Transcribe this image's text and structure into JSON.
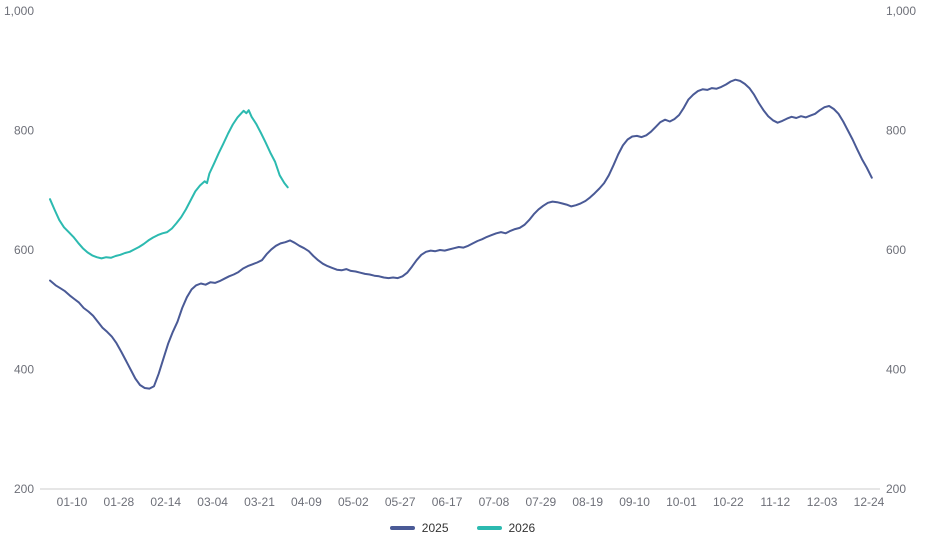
{
  "chart_data": {
    "type": "line",
    "title": "",
    "xlabel": "",
    "ylabel": "",
    "ylim": [
      200,
      1000
    ],
    "grid": false,
    "legend_position": "bottom",
    "y_axis": {
      "tick_values": [
        200,
        400,
        600,
        800,
        1000
      ],
      "tick_labels": [
        "200",
        "400",
        "600",
        "800",
        "1,000"
      ],
      "shown_on": "both-sides"
    },
    "x_axis": {
      "tick_labels": [
        "01-10",
        "01-28",
        "02-14",
        "03-04",
        "03-21",
        "04-09",
        "05-02",
        "05-27",
        "06-17",
        "07-08",
        "07-29",
        "08-19",
        "09-10",
        "10-01",
        "10-22",
        "11-12",
        "12-03",
        "12-24"
      ]
    },
    "colors": {
      "axis_label": "#6E7079",
      "axis_line": "#CCCCCC",
      "legend_text": "#333333",
      "background": "#FFFFFF"
    },
    "series": [
      {
        "name": "2025",
        "color": "#4A5A96",
        "points": [
          [
            -0.47,
            549
          ],
          [
            -0.35,
            541
          ],
          [
            -0.25,
            536
          ],
          [
            -0.15,
            531
          ],
          [
            -0.05,
            524
          ],
          [
            0.05,
            518
          ],
          [
            0.15,
            512
          ],
          [
            0.25,
            503
          ],
          [
            0.35,
            497
          ],
          [
            0.45,
            490
          ],
          [
            0.55,
            480
          ],
          [
            0.65,
            470
          ],
          [
            0.75,
            463
          ],
          [
            0.85,
            455
          ],
          [
            0.95,
            444
          ],
          [
            1.05,
            430
          ],
          [
            1.15,
            415
          ],
          [
            1.25,
            400
          ],
          [
            1.35,
            385
          ],
          [
            1.45,
            374
          ],
          [
            1.55,
            369
          ],
          [
            1.65,
            368
          ],
          [
            1.75,
            372
          ],
          [
            1.85,
            393
          ],
          [
            1.95,
            418
          ],
          [
            2.05,
            443
          ],
          [
            2.15,
            463
          ],
          [
            2.25,
            480
          ],
          [
            2.35,
            503
          ],
          [
            2.45,
            521
          ],
          [
            2.55,
            534
          ],
          [
            2.65,
            541
          ],
          [
            2.75,
            544
          ],
          [
            2.85,
            542
          ],
          [
            2.95,
            546
          ],
          [
            3.05,
            545
          ],
          [
            3.15,
            548
          ],
          [
            3.25,
            552
          ],
          [
            3.35,
            556
          ],
          [
            3.45,
            559
          ],
          [
            3.55,
            563
          ],
          [
            3.65,
            569
          ],
          [
            3.75,
            573
          ],
          [
            3.85,
            576
          ],
          [
            3.95,
            579
          ],
          [
            4.05,
            583
          ],
          [
            4.15,
            593
          ],
          [
            4.25,
            601
          ],
          [
            4.35,
            607
          ],
          [
            4.45,
            611
          ],
          [
            4.55,
            613
          ],
          [
            4.65,
            616
          ],
          [
            4.75,
            612
          ],
          [
            4.85,
            607
          ],
          [
            4.95,
            603
          ],
          [
            5.05,
            598
          ],
          [
            5.15,
            590
          ],
          [
            5.25,
            583
          ],
          [
            5.35,
            577
          ],
          [
            5.45,
            573
          ],
          [
            5.55,
            570
          ],
          [
            5.65,
            567
          ],
          [
            5.75,
            566
          ],
          [
            5.85,
            568
          ],
          [
            5.95,
            565
          ],
          [
            6.05,
            564
          ],
          [
            6.15,
            562
          ],
          [
            6.25,
            560
          ],
          [
            6.35,
            559
          ],
          [
            6.45,
            557
          ],
          [
            6.55,
            556
          ],
          [
            6.65,
            554
          ],
          [
            6.75,
            553
          ],
          [
            6.85,
            554
          ],
          [
            6.95,
            553
          ],
          [
            7.05,
            556
          ],
          [
            7.15,
            562
          ],
          [
            7.25,
            572
          ],
          [
            7.35,
            583
          ],
          [
            7.45,
            592
          ],
          [
            7.55,
            597
          ],
          [
            7.65,
            599
          ],
          [
            7.75,
            598
          ],
          [
            7.85,
            600
          ],
          [
            7.95,
            599
          ],
          [
            8.05,
            601
          ],
          [
            8.15,
            603
          ],
          [
            8.25,
            605
          ],
          [
            8.35,
            604
          ],
          [
            8.45,
            607
          ],
          [
            8.55,
            611
          ],
          [
            8.65,
            615
          ],
          [
            8.75,
            618
          ],
          [
            8.85,
            622
          ],
          [
            8.95,
            625
          ],
          [
            9.05,
            628
          ],
          [
            9.15,
            630
          ],
          [
            9.25,
            628
          ],
          [
            9.35,
            632
          ],
          [
            9.45,
            635
          ],
          [
            9.55,
            637
          ],
          [
            9.65,
            642
          ],
          [
            9.75,
            650
          ],
          [
            9.85,
            660
          ],
          [
            9.95,
            668
          ],
          [
            10.05,
            674
          ],
          [
            10.15,
            679
          ],
          [
            10.25,
            681
          ],
          [
            10.35,
            680
          ],
          [
            10.45,
            678
          ],
          [
            10.55,
            676
          ],
          [
            10.65,
            673
          ],
          [
            10.75,
            675
          ],
          [
            10.85,
            678
          ],
          [
            10.95,
            682
          ],
          [
            11.05,
            688
          ],
          [
            11.15,
            695
          ],
          [
            11.25,
            703
          ],
          [
            11.35,
            712
          ],
          [
            11.45,
            725
          ],
          [
            11.55,
            742
          ],
          [
            11.65,
            760
          ],
          [
            11.75,
            775
          ],
          [
            11.85,
            785
          ],
          [
            11.95,
            790
          ],
          [
            12.05,
            791
          ],
          [
            12.15,
            789
          ],
          [
            12.25,
            792
          ],
          [
            12.35,
            798
          ],
          [
            12.45,
            806
          ],
          [
            12.55,
            814
          ],
          [
            12.65,
            818
          ],
          [
            12.75,
            815
          ],
          [
            12.85,
            819
          ],
          [
            12.95,
            826
          ],
          [
            13.05,
            838
          ],
          [
            13.15,
            852
          ],
          [
            13.25,
            860
          ],
          [
            13.35,
            866
          ],
          [
            13.45,
            869
          ],
          [
            13.55,
            868
          ],
          [
            13.65,
            871
          ],
          [
            13.75,
            870
          ],
          [
            13.85,
            873
          ],
          [
            13.95,
            877
          ],
          [
            14.05,
            882
          ],
          [
            14.15,
            885
          ],
          [
            14.25,
            883
          ],
          [
            14.35,
            878
          ],
          [
            14.45,
            871
          ],
          [
            14.55,
            860
          ],
          [
            14.65,
            846
          ],
          [
            14.75,
            834
          ],
          [
            14.85,
            824
          ],
          [
            14.95,
            817
          ],
          [
            15.05,
            813
          ],
          [
            15.15,
            816
          ],
          [
            15.25,
            820
          ],
          [
            15.35,
            823
          ],
          [
            15.45,
            821
          ],
          [
            15.55,
            824
          ],
          [
            15.65,
            822
          ],
          [
            15.75,
            825
          ],
          [
            15.85,
            828
          ],
          [
            15.95,
            834
          ],
          [
            16.05,
            839
          ],
          [
            16.15,
            841
          ],
          [
            16.25,
            836
          ],
          [
            16.35,
            828
          ],
          [
            16.45,
            815
          ],
          [
            16.55,
            800
          ],
          [
            16.65,
            785
          ],
          [
            16.75,
            768
          ],
          [
            16.85,
            752
          ],
          [
            16.95,
            738
          ],
          [
            17.06,
            721
          ]
        ]
      },
      {
        "name": "2026",
        "color": "#2CBAB0",
        "points": [
          [
            -0.47,
            685
          ],
          [
            -0.37,
            667
          ],
          [
            -0.27,
            650
          ],
          [
            -0.17,
            638
          ],
          [
            -0.07,
            630
          ],
          [
            0.03,
            622
          ],
          [
            0.13,
            612
          ],
          [
            0.23,
            603
          ],
          [
            0.33,
            596
          ],
          [
            0.43,
            591
          ],
          [
            0.53,
            588
          ],
          [
            0.63,
            586
          ],
          [
            0.73,
            588
          ],
          [
            0.83,
            587
          ],
          [
            0.93,
            590
          ],
          [
            1.03,
            592
          ],
          [
            1.13,
            595
          ],
          [
            1.23,
            597
          ],
          [
            1.33,
            601
          ],
          [
            1.43,
            605
          ],
          [
            1.53,
            610
          ],
          [
            1.63,
            616
          ],
          [
            1.73,
            621
          ],
          [
            1.83,
            625
          ],
          [
            1.93,
            628
          ],
          [
            2.03,
            630
          ],
          [
            2.13,
            636
          ],
          [
            2.23,
            645
          ],
          [
            2.33,
            655
          ],
          [
            2.43,
            668
          ],
          [
            2.53,
            683
          ],
          [
            2.63,
            698
          ],
          [
            2.73,
            708
          ],
          [
            2.83,
            715
          ],
          [
            2.88,
            712
          ],
          [
            2.93,
            728
          ],
          [
            3.03,
            745
          ],
          [
            3.13,
            762
          ],
          [
            3.23,
            778
          ],
          [
            3.33,
            795
          ],
          [
            3.43,
            810
          ],
          [
            3.53,
            822
          ],
          [
            3.6,
            828
          ],
          [
            3.66,
            833
          ],
          [
            3.72,
            829
          ],
          [
            3.77,
            834
          ],
          [
            3.83,
            823
          ],
          [
            3.93,
            811
          ],
          [
            4.03,
            796
          ],
          [
            4.13,
            780
          ],
          [
            4.23,
            763
          ],
          [
            4.33,
            748
          ],
          [
            4.43,
            725
          ],
          [
            4.53,
            712
          ],
          [
            4.6,
            705
          ]
        ]
      }
    ]
  },
  "legend": {
    "items": [
      "2025",
      "2026"
    ]
  }
}
